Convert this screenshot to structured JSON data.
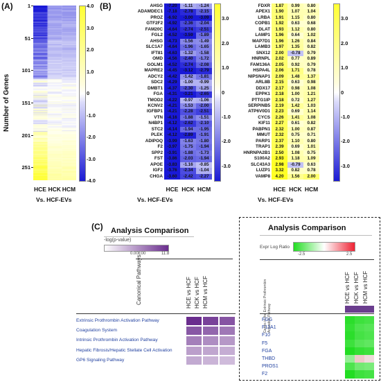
{
  "panels": {
    "a": {
      "label": "(A)",
      "ylabel": "Number of Genes",
      "yticks": [
        "1",
        "51",
        "101",
        "151",
        "201",
        "251"
      ],
      "columns": [
        "HCE",
        "HCK",
        "HCM"
      ],
      "vs_label": "Vs. HCF-EVs",
      "colorbar_ticks": [
        "4.0",
        "3.0",
        "2.0",
        "1.0",
        "0",
        "-1.0",
        "-2.0",
        "-3.0",
        "-4.0"
      ]
    },
    "b": {
      "label": "(B)",
      "columns": [
        "HCE",
        "HCK",
        "HCM"
      ],
      "vs_label": "Vs.  HCF-EVs",
      "colorbar_left_ticks": [
        "3.0",
        "2.0",
        "1.0",
        "0",
        "-1.0",
        "-2.0",
        "-3.0"
      ],
      "colorbar_right_ticks": [
        "3.0",
        "2.0",
        "1.0",
        "0",
        "-1.0",
        "-2.0",
        "-3.0"
      ]
    },
    "c": {
      "label": "(C)",
      "title": "Analysis Comparison",
      "legend_label": "-log(p-value)",
      "legend_min": "0.00E00",
      "legend_max": "11.8",
      "axis_label": "Canonical Pathways",
      "columns": [
        "HCE vs HCF",
        "HCK vs HCF",
        "HCM vs HCF"
      ],
      "pathways": [
        "Extrinsic Prothrombin Activation Pathway",
        "Coagulation System",
        "Intrinsic Prothrombin Activation Pathway",
        "Hepatic Fibrosis/Hepatic Stellate Cell Activation",
        "GP6 Signaling Pathway"
      ]
    },
    "d": {
      "title": "Analysis Comparison",
      "legend_label": "Expr Log Ratio",
      "legend_min": "-2.5",
      "legend_max": "2.5",
      "axis_label": "Genes in the Extrinsic Prothrombin Activation Pathway",
      "columns": [
        "HCE vs HCF",
        "HCK vs HCF",
        "HCM vs HCF"
      ],
      "genes": [
        "FGG",
        "F13A1",
        "F10",
        "F5",
        "FGA",
        "THBD",
        "PROS1",
        "F2"
      ]
    }
  },
  "chart_data": [
    {
      "type": "heatmap",
      "panel": "A",
      "ylabel": "Number of Genes",
      "columns": [
        "HCE",
        "HCK",
        "HCM"
      ],
      "row_count": 270,
      "color_range": [
        -4.0,
        4.0
      ]
    },
    {
      "type": "table",
      "panel": "B-left",
      "columns": [
        "HCE",
        "HCK",
        "HCM"
      ],
      "genes": [
        "AHSG",
        "ADAMDEC1",
        "PROZ",
        "GTF2F2",
        "FAM20C",
        "FGL2",
        "AHSG",
        "SLC1A7",
        "IFT81",
        "OMD",
        "GOLM1",
        "MAPRE2",
        "ADCY2",
        "SDC2",
        "DMBT1",
        "FGA",
        "TMOD2",
        "KCNV2",
        "IGFBP1",
        "VTN",
        "N4BP1",
        "STC2",
        "PLEK",
        "ADIPOQ",
        "F2",
        "SPP2",
        "FST",
        "APOE",
        "IGF2",
        "CHGA"
      ],
      "values": [
        [
          -7.2,
          -1.11,
          -1.24
        ],
        [
          -7.18,
          -2.78,
          -2.15
        ],
        [
          -6.92,
          -3.0,
          -3.09
        ],
        [
          -4.92,
          -2.36,
          -2.04
        ],
        [
          -4.64,
          -2.74,
          -2.51
        ],
        [
          -4.52,
          -3.59,
          -1.89
        ],
        [
          -4.73,
          -1.56,
          -1.49
        ],
        [
          -4.64,
          -1.96,
          -1.65
        ],
        [
          -4.63,
          -1.32,
          -1.58
        ],
        [
          -4.56,
          -2.4,
          -1.72
        ],
        [
          -4.52,
          -2.74,
          -2.08
        ],
        [
          -4.45,
          -3.12,
          -2.79
        ],
        [
          -4.42,
          -1.42,
          -1.81
        ],
        [
          -4.29,
          -1.0,
          -0.99
        ],
        [
          -4.37,
          -2.3,
          -1.25
        ],
        [
          -4.31,
          -3.21,
          -2.65
        ],
        [
          -4.22,
          -0.97,
          -1.06
        ],
        [
          -4.21,
          -1.53,
          -2.0
        ],
        [
          -4.21,
          -2.28,
          -2.51
        ],
        [
          -4.16,
          -1.88,
          -1.51
        ],
        [
          -4.12,
          -2.62,
          -2.1
        ],
        [
          -4.14,
          -1.94,
          -1.95
        ],
        [
          -4.12,
          -2.89,
          -1.91
        ],
        [
          -3.99,
          -1.63,
          -1.8
        ],
        [
          -3.97,
          -1.75,
          -1.94
        ],
        [
          -3.91,
          -1.88,
          -1.73
        ],
        [
          -3.86,
          -2.03,
          -1.94
        ],
        [
          -3.83,
          -1.16,
          -0.85
        ],
        [
          -3.76,
          -2.34,
          -1.04
        ],
        [
          -3.6,
          -2.42,
          -2.27
        ]
      ],
      "color_range": [
        -3.0,
        3.0
      ]
    },
    {
      "type": "table",
      "panel": "B-right",
      "columns": [
        "HCE",
        "HCK",
        "HCM"
      ],
      "genes": [
        "FDXR",
        "APEX1",
        "LRBA",
        "COPB1",
        "DLAT",
        "LAMP1",
        "MAP7D1",
        "LAMB3",
        "SNX12",
        "HNRNPL",
        "FAM136A",
        "HSPA4L",
        "NIPSNAP1",
        "ARL8B",
        "DDX17",
        "EPPK1",
        "PTTG1IP",
        "SERPINB5",
        "ATP6V0D1",
        "CYCS",
        "KIF11",
        "PABPN1",
        "MMUT",
        "PARP1",
        "TRAP1",
        "HNRNPA2B1",
        "S100A2",
        "SLC43A3",
        "LUZP1",
        "VAMP8"
      ],
      "values": [
        [
          1.87,
          0.99,
          0.8
        ],
        [
          1.9,
          1.07,
          1.04
        ],
        [
          1.91,
          1.15,
          0.8
        ],
        [
          1.92,
          0.63,
          0.68
        ],
        [
          1.93,
          1.12,
          0.8
        ],
        [
          1.96,
          0.64,
          1.02
        ],
        [
          1.96,
          1.26,
          0.84
        ],
        [
          1.97,
          1.35,
          0.82
        ],
        [
          2.0,
          -0.78,
          0.79
        ],
        [
          2.02,
          0.77,
          0.89
        ],
        [
          2.05,
          0.92,
          0.79
        ],
        [
          2.06,
          1.71,
          0.78
        ],
        [
          2.09,
          1.48,
          1.37
        ],
        [
          2.15,
          0.63,
          0.98
        ],
        [
          2.17,
          0.98,
          1.08
        ],
        [
          2.18,
          1.0,
          1.21
        ],
        [
          2.18,
          0.72,
          1.27
        ],
        [
          2.19,
          1.42,
          1.03
        ],
        [
          2.23,
          0.69,
          1.14
        ],
        [
          2.26,
          1.41,
          1.08
        ],
        [
          2.27,
          0.61,
          0.82
        ],
        [
          2.32,
          1.0,
          0.87
        ],
        [
          2.32,
          0.75,
          0.71
        ],
        [
          2.37,
          1.1,
          0.8
        ],
        [
          2.39,
          0.69,
          1.01
        ],
        [
          2.5,
          1.08,
          0.75
        ],
        [
          2.93,
          1.18,
          1.09
        ],
        [
          2.98,
          -0.79,
          0.63
        ],
        [
          3.32,
          0.82,
          0.78
        ],
        [
          4.2,
          1.56,
          2.0
        ]
      ],
      "color_range": [
        -3.0,
        3.0
      ]
    },
    {
      "type": "heatmap",
      "panel": "C",
      "title": "Analysis Comparison",
      "rows": [
        "Extrinsic Prothrombin Activation Pathway",
        "Coagulation System",
        "Intrinsic Prothrombin Activation Pathway",
        "Hepatic Fibrosis/Hepatic Stellate Cell Activation",
        "GP6 Signaling Pathway"
      ],
      "columns": [
        "HCE vs HCF",
        "HCK vs HCF",
        "HCM vs HCF"
      ],
      "values": [
        [
          11.8,
          10.6,
          9.6
        ],
        [
          9.4,
          8.6,
          7.6
        ],
        [
          7.2,
          6.4,
          5.8
        ],
        [
          5.4,
          5.0,
          4.6
        ],
        [
          4.8,
          4.2,
          3.8
        ]
      ],
      "color_range": [
        0,
        11.8
      ]
    },
    {
      "type": "heatmap",
      "panel": "C-right",
      "title": "Analysis Comparison",
      "rows": [
        "FGG",
        "F13A1",
        "F10",
        "F5",
        "FGA",
        "THBD",
        "PROS1",
        "F2"
      ],
      "columns": [
        "HCE vs HCF",
        "HCK vs HCF",
        "HCM vs HCF"
      ],
      "values": [
        [
          -2.4,
          -2.2,
          -2.1
        ],
        [
          -2.3,
          -2.0,
          -1.9
        ],
        [
          -2.4,
          -2.1,
          -2.0
        ],
        [
          -2.2,
          -1.9,
          -1.8
        ],
        [
          -2.5,
          -2.3,
          -2.2
        ],
        [
          -1.2,
          0.9,
          0.6
        ],
        [
          -2.0,
          -1.6,
          -1.5
        ],
        [
          -2.5,
          -2.2,
          -2.1
        ]
      ],
      "color_range": [
        -2.5,
        2.5
      ]
    }
  ]
}
